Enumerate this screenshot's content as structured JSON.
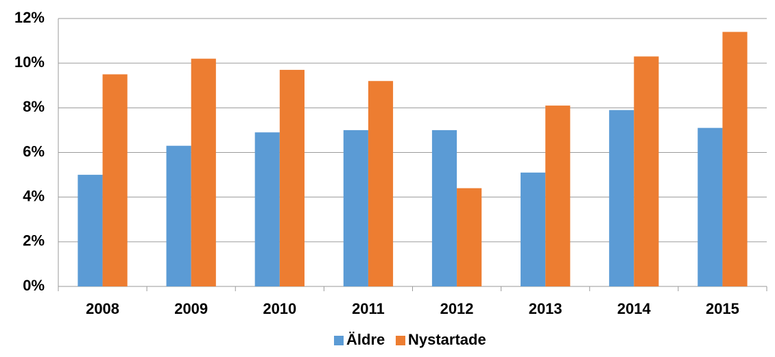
{
  "chart_data": {
    "type": "bar",
    "categories": [
      "2008",
      "2009",
      "2010",
      "2011",
      "2012",
      "2013",
      "2014",
      "2015"
    ],
    "series": [
      {
        "name": "Äldre",
        "color": "#5b9bd5",
        "values": [
          5.0,
          6.3,
          6.9,
          7.0,
          7.0,
          5.1,
          7.9,
          7.1
        ]
      },
      {
        "name": "Nystartade",
        "color": "#ed7d31",
        "values": [
          9.5,
          10.2,
          9.7,
          9.2,
          4.4,
          8.1,
          10.3,
          11.4
        ]
      }
    ],
    "ylim": [
      0,
      12
    ],
    "yticks": [
      {
        "value": 0,
        "label": "0%"
      },
      {
        "value": 2,
        "label": "2%"
      },
      {
        "value": 4,
        "label": "4%"
      },
      {
        "value": 6,
        "label": "6%"
      },
      {
        "value": 8,
        "label": "8%"
      },
      {
        "value": 10,
        "label": "10%"
      },
      {
        "value": 12,
        "label": "12%"
      }
    ],
    "grid": true,
    "legend": "bottom"
  }
}
